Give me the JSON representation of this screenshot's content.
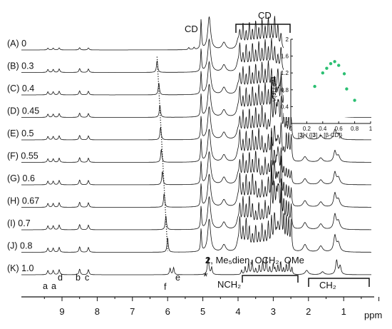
{
  "chart_data": [
    {
      "type": "line",
      "title": "",
      "xlabel": "ppm",
      "ylabel": "",
      "x_axis": {
        "direction": "reversed",
        "range": [
          9.8,
          0.3
        ],
        "ticks": [
          "9",
          "8",
          "7",
          "6",
          "5",
          "4",
          "3",
          "2",
          "1"
        ]
      },
      "series": [
        {
          "label": "(A)",
          "ratio": "0"
        },
        {
          "label": "(B)",
          "ratio": "0.3"
        },
        {
          "label": "(C)",
          "ratio": "0.4"
        },
        {
          "label": "(D)",
          "ratio": "0.45"
        },
        {
          "label": "(E)",
          "ratio": "0.5"
        },
        {
          "label": "(F)",
          "ratio": "0.55"
        },
        {
          "label": "(G)",
          "ratio": "0.6"
        },
        {
          "label": "(H)",
          "ratio": "0.67"
        },
        {
          "label": "(I)",
          "ratio": "0.7"
        },
        {
          "label": "(J)",
          "ratio": "0.8"
        },
        {
          "label": "(K)",
          "ratio": "1.0"
        }
      ],
      "peaks": {
        "a": [
          9.4,
          9.25
        ],
        "d": 9.08,
        "b": 8.5,
        "c": 8.25,
        "f": 5.93,
        "e": 5.83,
        "f_shift": [
          6.3,
          6.25,
          6.22,
          6.2,
          6.18,
          6.15,
          6.1,
          6.05,
          6.0,
          5.93
        ],
        "CD": [
          5.05,
          4.82,
          4.0,
          3.75,
          3.6,
          3.45
        ]
      },
      "annotations": {
        "cd_left": "CD",
        "cd_bracket": "CD",
        "peak_a1": "a",
        "peak_a2": "a",
        "peak_d": "d",
        "peak_b": "b",
        "peak_c": "c",
        "peak_f": "f",
        "peak_e": "e",
        "star": "*",
        "compound_num": "2",
        "compound_rest": ", Me₅dien, OCH₂, OMe",
        "nch2": "NCH₂",
        "ch2": "CH₂"
      }
    },
    {
      "type": "scatter",
      "xlabel_parts": [
        "[",
        "3",
        "] / {[",
        "3",
        "] + [β-CD]}"
      ],
      "ylabel_parts": [
        "ν",
        "t",
        "[",
        "3",
        "] / mM"
      ],
      "xlim": [
        0,
        1
      ],
      "ylim": [
        0,
        2
      ],
      "x_ticks": [
        "0",
        "0.2",
        "0.4",
        "0.6",
        "0.8",
        "1"
      ],
      "y_ticks": [
        "0",
        "0.4",
        "0.8",
        "1.2",
        "1.6",
        "2"
      ],
      "point_color": "#2bbf72",
      "x": [
        0.3,
        0.4,
        0.45,
        0.5,
        0.55,
        0.6,
        0.67,
        0.7,
        0.8
      ],
      "y": [
        0.88,
        1.2,
        1.31,
        1.42,
        1.47,
        1.38,
        1.18,
        0.82,
        0.55
      ]
    }
  ]
}
